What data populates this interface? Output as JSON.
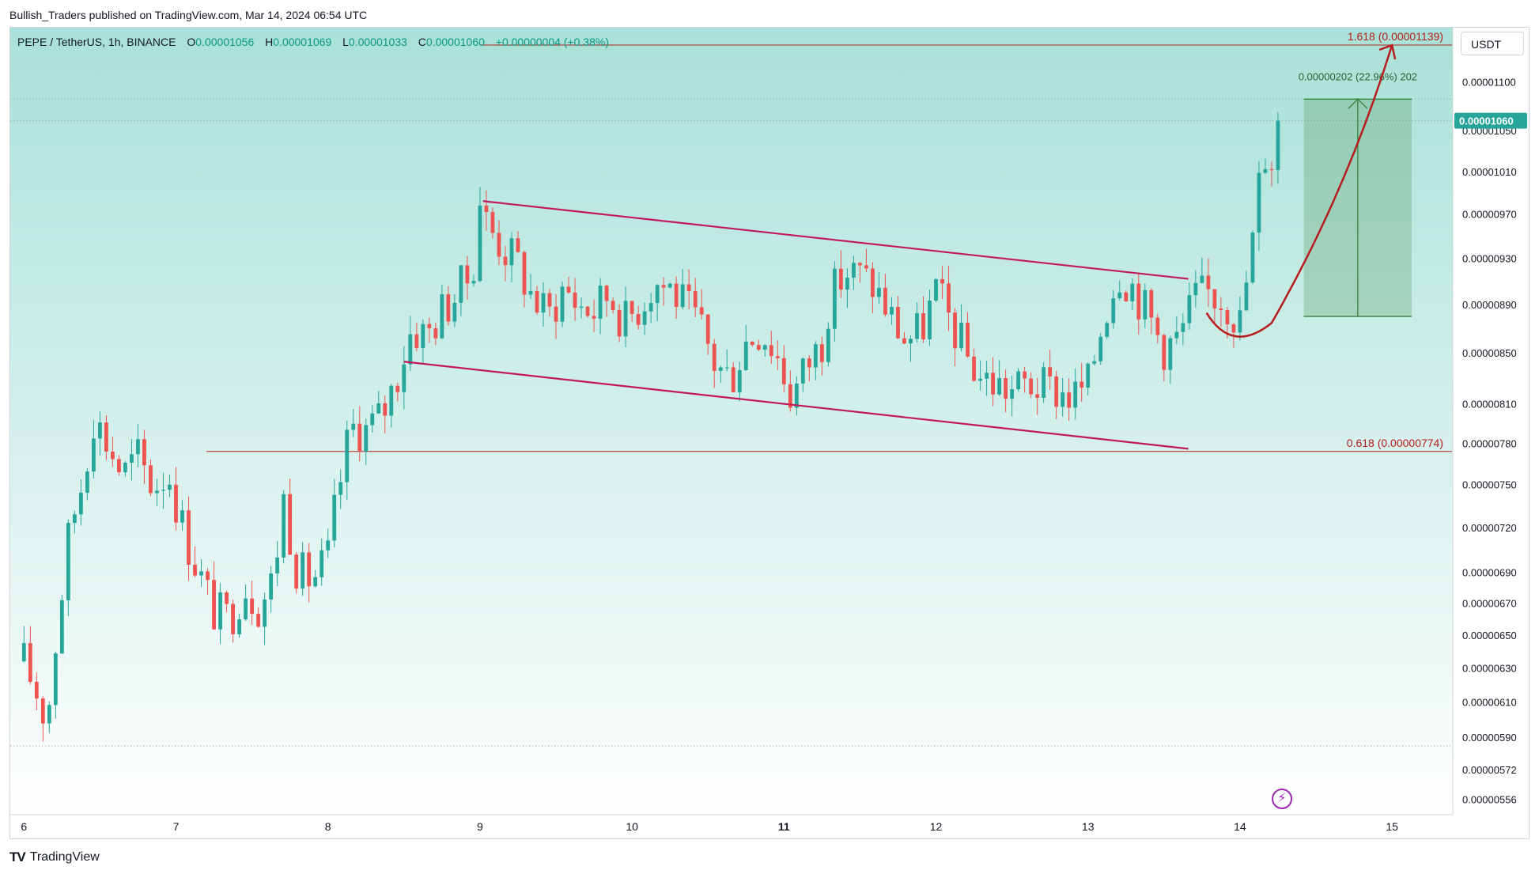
{
  "header": {
    "publisher": "Bullish_Traders published on TradingView.com, Mar 14, 2024 06:54 UTC"
  },
  "legend": {
    "symbol": "PEPE / TetherUS, 1h, BINANCE",
    "open_label": "O",
    "open": "0.00001056",
    "high_label": "H",
    "high": "0.00001069",
    "low_label": "L",
    "low": "0.00001033",
    "close_label": "C",
    "close": "0.00001060",
    "change": "+0.00000004 (+0.38%)"
  },
  "currency": "USDT",
  "footer": {
    "brand": "TradingView"
  },
  "colors": {
    "up": "#26a69a",
    "down": "#ef5350",
    "trendline": "#c2185b",
    "fib": "#b71c1c",
    "bg_top": "#a8e1d7",
    "bg_bottom": "#ffffff",
    "projection": "#2e7d32",
    "price_badge": "#26a69a"
  },
  "chart_data": {
    "type": "candlestick",
    "symbol": "PEPE / TetherUS",
    "timeframe": "1h",
    "exchange": "BINANCE",
    "y_scale": "log",
    "ylim": [
      5.48e-06,
      1.158e-05
    ],
    "xlim": [
      -0.09,
      9.4
    ],
    "x_ticks": [
      {
        "t": 0,
        "label": "6"
      },
      {
        "t": 1,
        "label": "7"
      },
      {
        "t": 2,
        "label": "8"
      },
      {
        "t": 3,
        "label": "9"
      },
      {
        "t": 4,
        "label": "10"
      },
      {
        "t": 5,
        "label": "11"
      },
      {
        "t": 6,
        "label": "12"
      },
      {
        "t": 7,
        "label": "13"
      },
      {
        "t": 8,
        "label": "14"
      },
      {
        "t": 9,
        "label": "15"
      }
    ],
    "y_ticks": [
      {
        "v": 1.1e-05,
        "label": "0.00001100"
      },
      {
        "v": 1.05e-05,
        "label": "0.00001050"
      },
      {
        "v": 1.01e-05,
        "label": "0.00001010"
      },
      {
        "v": 9.7e-06,
        "label": "0.00000970"
      },
      {
        "v": 9.3e-06,
        "label": "0.00000930"
      },
      {
        "v": 8.9e-06,
        "label": "0.00000890"
      },
      {
        "v": 8.5e-06,
        "label": "0.00000850"
      },
      {
        "v": 8.1e-06,
        "label": "0.00000810"
      },
      {
        "v": 7.8e-06,
        "label": "0.00000780"
      },
      {
        "v": 7.5e-06,
        "label": "0.00000750"
      },
      {
        "v": 7.2e-06,
        "label": "0.00000720"
      },
      {
        "v": 6.9e-06,
        "label": "0.00000690"
      },
      {
        "v": 6.7e-06,
        "label": "0.00000670"
      },
      {
        "v": 6.5e-06,
        "label": "0.00000650"
      },
      {
        "v": 6.3e-06,
        "label": "0.00000630"
      },
      {
        "v": 6.1e-06,
        "label": "0.00000610"
      },
      {
        "v": 5.9e-06,
        "label": "0.00000590"
      },
      {
        "v": 5.72e-06,
        "label": "0.00000572"
      },
      {
        "v": 5.56e-06,
        "label": "0.00000556"
      }
    ],
    "last_price": {
      "v": 1.06e-05,
      "label": "0.00001060"
    },
    "close_path": [
      [
        0.0,
        6.34e-06
      ],
      [
        0.1,
        6.12e-06
      ],
      [
        0.15,
        5.98e-06
      ],
      [
        0.22,
        6.55e-06
      ],
      [
        0.3,
        7.18e-06
      ],
      [
        0.4,
        7.6e-06
      ],
      [
        0.45,
        8.02e-06
      ],
      [
        0.55,
        7.8e-06
      ],
      [
        0.65,
        7.57e-06
      ],
      [
        0.75,
        7.7e-06
      ],
      [
        0.85,
        7.48e-06
      ],
      [
        0.95,
        7.6e-06
      ],
      [
        1.05,
        7.18e-06
      ],
      [
        1.15,
        6.9e-06
      ],
      [
        1.25,
        6.65e-06
      ],
      [
        1.35,
        6.6e-06
      ],
      [
        1.45,
        6.82e-06
      ],
      [
        1.55,
        6.68e-06
      ],
      [
        1.65,
        6.88e-06
      ],
      [
        1.7,
        7.45e-06
      ],
      [
        1.8,
        6.9e-06
      ],
      [
        1.9,
        6.85e-06
      ],
      [
        2.0,
        7e-06
      ],
      [
        2.05,
        7.35e-06
      ],
      [
        2.15,
        7.92e-06
      ],
      [
        2.25,
        7.9e-06
      ],
      [
        2.35,
        8e-06
      ],
      [
        2.45,
        8.3e-06
      ],
      [
        2.55,
        8.7e-06
      ],
      [
        2.65,
        8.65e-06
      ],
      [
        2.75,
        8.85e-06
      ],
      [
        2.85,
        9e-06
      ],
      [
        2.95,
        9.18e-06
      ],
      [
        3.0,
        9.85e-06
      ],
      [
        3.05,
        9.6e-06
      ],
      [
        3.15,
        9.4e-06
      ],
      [
        3.25,
        9.25e-06
      ],
      [
        3.35,
        8.95e-06
      ],
      [
        3.45,
        8.8e-06
      ],
      [
        3.55,
        9.05e-06
      ],
      [
        3.65,
        8.9e-06
      ],
      [
        3.75,
        8.85e-06
      ],
      [
        3.85,
        9e-06
      ],
      [
        3.95,
        8.75e-06
      ],
      [
        4.05,
        8.9e-06
      ],
      [
        4.15,
        9.1e-06
      ],
      [
        4.25,
        9.05e-06
      ],
      [
        4.35,
        8.88e-06
      ],
      [
        4.45,
        8.7e-06
      ],
      [
        4.55,
        8.4e-06
      ],
      [
        4.65,
        8.3e-06
      ],
      [
        4.75,
        8.6e-06
      ],
      [
        4.85,
        8.7e-06
      ],
      [
        4.95,
        8.5e-06
      ],
      [
        5.05,
        8.15e-06
      ],
      [
        5.15,
        8.4e-06
      ],
      [
        5.25,
        8.6e-06
      ],
      [
        5.3,
        8.95e-06
      ],
      [
        5.4,
        9.18e-06
      ],
      [
        5.5,
        9.15e-06
      ],
      [
        5.6,
        9.05e-06
      ],
      [
        5.7,
        8.8e-06
      ],
      [
        5.8,
        8.6e-06
      ],
      [
        5.9,
        8.68e-06
      ],
      [
        6.0,
        9e-06
      ],
      [
        6.1,
        8.75e-06
      ],
      [
        6.2,
        8.48e-06
      ],
      [
        6.3,
        8.3e-06
      ],
      [
        6.4,
        8.25e-06
      ],
      [
        6.5,
        8.2e-06
      ],
      [
        6.6,
        8.26e-06
      ],
      [
        6.7,
        8.22e-06
      ],
      [
        6.8,
        8.2e-06
      ],
      [
        6.9,
        8.15e-06
      ],
      [
        7.0,
        8.25e-06
      ],
      [
        7.1,
        8.8e-06
      ],
      [
        7.2,
        9.2e-06
      ],
      [
        7.3,
        9.05e-06
      ],
      [
        7.4,
        8.8e-06
      ],
      [
        7.5,
        8.55e-06
      ],
      [
        7.6,
        8.62e-06
      ],
      [
        7.7,
        8.95e-06
      ],
      [
        7.8,
        9e-06
      ],
      [
        7.9,
        8.95e-06
      ],
      [
        8.0,
        8.75e-06
      ],
      [
        8.1,
        9.6e-06
      ],
      [
        8.15,
        1.035e-05
      ],
      [
        8.2,
        1.015e-05
      ],
      [
        8.25,
        1.06e-05
      ]
    ],
    "trendlines": [
      {
        "name": "upper channel",
        "points": [
          [
            3.02,
            9.82e-06
          ],
          [
            7.66,
            9.12e-06
          ]
        ]
      },
      {
        "name": "lower channel",
        "points": [
          [
            2.5,
            8.43e-06
          ],
          [
            7.66,
            7.76e-06
          ]
        ]
      }
    ],
    "fib_levels": [
      {
        "label": "1.618 (0.00001139)",
        "value": 1.139e-05,
        "t_start": 3.0
      },
      {
        "label": "0.618 (0.00000774)",
        "value": 7.74e-06,
        "t_start": 1.2
      }
    ],
    "projection": {
      "label": "0.00000202 (22.96%) 202",
      "from": 8.8e-06,
      "to": 1.082e-05,
      "t_start": 8.42,
      "t_end": 9.13
    },
    "current_close": 1.06e-05
  }
}
